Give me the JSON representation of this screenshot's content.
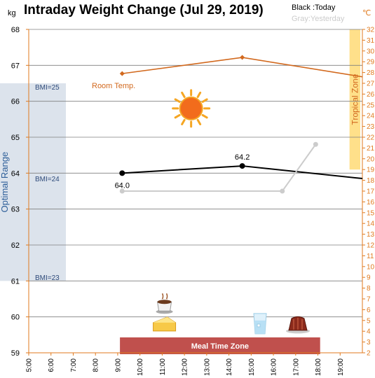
{
  "chart_data": {
    "type": "line",
    "title": "Intraday Weight Change (Jul 29, 2019)",
    "legend": {
      "today": "Black :Today",
      "yesterday": "Gray:Yesterday",
      "placement": "top-right"
    },
    "left_axis": {
      "unit": "kg",
      "range": [
        59,
        68
      ],
      "ticks": [
        "59",
        "60",
        "61",
        "62",
        "63",
        "64",
        "65",
        "66",
        "67",
        "68"
      ]
    },
    "right_axis": {
      "unit": "℃",
      "range": [
        2,
        32
      ],
      "ticks": [
        "2",
        "3",
        "4",
        "5",
        "6",
        "7",
        "8",
        "9",
        "10",
        "11",
        "12",
        "13",
        "14",
        "15",
        "16",
        "17",
        "18",
        "19",
        "20",
        "21",
        "22",
        "23",
        "24",
        "25",
        "26",
        "27",
        "28",
        "29",
        "30",
        "31",
        "32"
      ]
    },
    "x_axis": {
      "range_hours": [
        5,
        20
      ],
      "ticks": [
        {
          "h": 5,
          "label": "5:00"
        },
        {
          "h": 6,
          "label": "6:00"
        },
        {
          "h": 7,
          "label": "7:00"
        },
        {
          "h": 8,
          "label": "8:00"
        },
        {
          "h": 9,
          "label": "9:00"
        },
        {
          "h": 10,
          "label": "10:00"
        },
        {
          "h": 11,
          "label": "11:00"
        },
        {
          "h": 12,
          "label": "12:00"
        },
        {
          "h": 13,
          "label": "13:00"
        },
        {
          "h": 14,
          "label": "14:00"
        },
        {
          "h": 15,
          "label": "15:00"
        },
        {
          "h": 16,
          "label": "16:00"
        },
        {
          "h": 17,
          "label": "17:00"
        },
        {
          "h": 18,
          "label": "18:00"
        },
        {
          "h": 19,
          "label": "19:00"
        }
      ]
    },
    "grid": true,
    "series": [
      {
        "name": "Today",
        "color": "#000000",
        "axis": "kg",
        "points": [
          {
            "h": 9.2,
            "v": 64.0,
            "label": "64.0"
          },
          {
            "h": 14.6,
            "v": 64.2,
            "label": "64.2"
          },
          {
            "h": 20,
            "v": 63.85,
            "label": ""
          }
        ]
      },
      {
        "name": "Yesterday",
        "color": "#cccccc",
        "axis": "kg",
        "points": [
          {
            "h": 9.2,
            "v": 63.5
          },
          {
            "h": 16.4,
            "v": 63.5
          },
          {
            "h": 17.9,
            "v": 64.8
          }
        ]
      },
      {
        "name": "Room Temp.",
        "color": "#d2691e",
        "axis": "temp",
        "points": [
          {
            "h": 9.2,
            "v": 27.9
          },
          {
            "h": 14.6,
            "v": 29.4
          },
          {
            "h": 20,
            "v": 27.6
          }
        ]
      }
    ],
    "bands": [
      {
        "kind": "optimal",
        "label": "Optimal Range",
        "color": "#dce3ec",
        "kg_range": [
          61,
          66.5
        ]
      },
      {
        "kind": "tropical",
        "label": "Tropical Zone",
        "color": "#ffe08a",
        "temp_range": [
          19,
          32
        ],
        "h_from": 19.8,
        "h_to": 20.5
      }
    ],
    "bmi_labels": [
      {
        "label": "BMI=25",
        "kg": 66.4
      },
      {
        "label": "BMI=24",
        "kg": 63.85
      },
      {
        "label": "BMI=23",
        "kg": 61.1
      }
    ],
    "room_temp_label": "Room Temp.",
    "meal_zone": {
      "label": "Meal Time Zone",
      "color": "#c0504d",
      "h_from": 9.1,
      "h_to": 18.1
    },
    "icons": [
      {
        "name": "sun-icon",
        "h": 12.3,
        "kg": 65.8
      },
      {
        "name": "coffee-cup-icon",
        "h": 11.1,
        "kg": 60.3
      },
      {
        "name": "cheesecake-icon",
        "h": 11.1,
        "kg": 59.8
      },
      {
        "name": "water-glass-icon",
        "h": 15.4,
        "kg": 59.8
      },
      {
        "name": "pudding-icon",
        "h": 17.1,
        "kg": 59.8
      }
    ]
  }
}
